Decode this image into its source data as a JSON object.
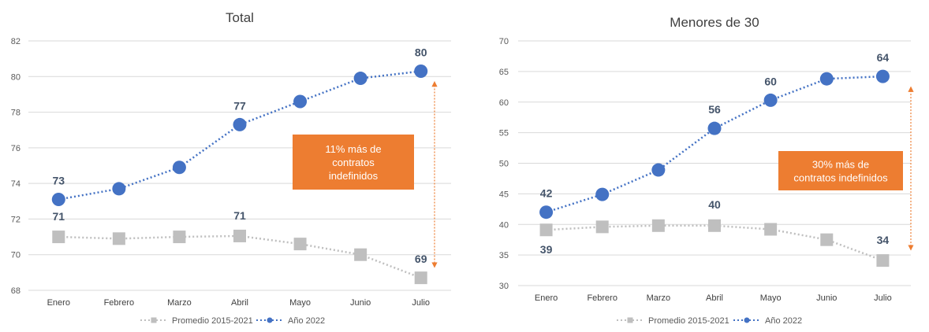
{
  "colors": {
    "avg": "#bfbfbf",
    "year": "#4472c4",
    "annotation_fill": "#ed7d31",
    "arrow": "#ed7d31",
    "data_label": "#44546a"
  },
  "chart_data": [
    {
      "type": "line",
      "title": "Total",
      "categories": [
        "Enero",
        "Febrero",
        "Marzo",
        "Abril",
        "Mayo",
        "Junio",
        "Julio"
      ],
      "yticks": [
        "68",
        "70",
        "72",
        "74",
        "76",
        "78",
        "80",
        "82"
      ],
      "ylim": [
        68,
        82
      ],
      "grid": true,
      "legend_position": "bottom",
      "series": [
        {
          "name": "Promedio 2015-2021",
          "color_key": "avg",
          "marker": "square",
          "values": [
            71.0,
            70.9,
            71.0,
            71.05,
            70.6,
            70.0,
            68.7
          ],
          "labels": [
            "71",
            "",
            "",
            "71",
            "",
            "",
            "69"
          ]
        },
        {
          "name": "Año 2022",
          "color_key": "year",
          "marker": "circle",
          "values": [
            73.1,
            73.7,
            74.9,
            77.3,
            78.6,
            79.9,
            80.3
          ],
          "labels": [
            "73",
            "",
            "",
            "77",
            "",
            "",
            "80"
          ]
        }
      ],
      "annotation": {
        "lines": [
          "11% más de",
          "contratos",
          "indefinidos"
        ]
      }
    },
    {
      "type": "line",
      "title": "Menores de 30",
      "categories": [
        "Enero",
        "Febrero",
        "Marzo",
        "Abril",
        "Mayo",
        "Junio",
        "Julio"
      ],
      "yticks": [
        "30",
        "35",
        "40",
        "45",
        "50",
        "55",
        "60",
        "65",
        "70"
      ],
      "ylim": [
        30,
        70
      ],
      "grid": true,
      "legend_position": "bottom",
      "series": [
        {
          "name": "Promedio 2015-2021",
          "color_key": "avg",
          "marker": "square",
          "values": [
            39.1,
            39.6,
            39.8,
            39.8,
            39.2,
            37.5,
            34.1
          ],
          "labels": [
            "39",
            "",
            "",
            "40",
            "",
            "",
            "34"
          ]
        },
        {
          "name": "Año 2022",
          "color_key": "year",
          "marker": "circle",
          "values": [
            42.0,
            44.9,
            48.9,
            55.7,
            60.3,
            63.8,
            64.2
          ],
          "labels": [
            "42",
            "",
            "",
            "56",
            "60",
            "",
            "64"
          ]
        }
      ],
      "annotation": {
        "lines": [
          "30% más de",
          "contratos indefinidos"
        ]
      }
    }
  ]
}
